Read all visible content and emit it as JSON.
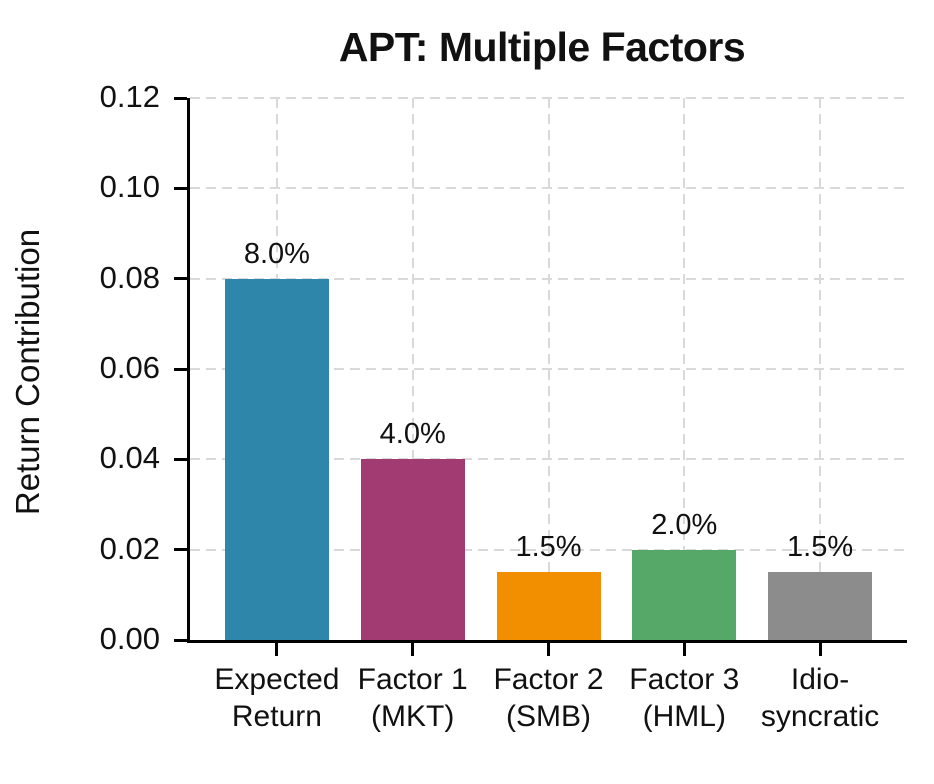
{
  "figure": {
    "background_color": "#ffffff",
    "text_color": "#111111",
    "gridline_color": "#d9d9d9",
    "gridline_style": "dashed",
    "spine_color": "#000000"
  },
  "chart_data": {
    "type": "bar",
    "title": "APT: Multiple Factors",
    "xlabel": "",
    "ylabel": "Return Contribution",
    "categories": [
      "Expected\nReturn",
      "Factor 1\n(MKT)",
      "Factor 2\n(SMB)",
      "Factor 3\n(HML)",
      "Idio-\nsyncratic"
    ],
    "values": [
      0.08,
      0.04,
      0.015,
      0.02,
      0.015
    ],
    "bar_labels": [
      "8.0%",
      "4.0%",
      "1.5%",
      "2.0%",
      "1.5%"
    ],
    "bar_colors": [
      "#2E86AB",
      "#A23B72",
      "#F18F01",
      "#55A868",
      "#8C8C8C"
    ],
    "ylim": [
      0,
      0.12
    ],
    "yticks": [
      0.0,
      0.02,
      0.04,
      0.06,
      0.08,
      0.1,
      0.12
    ],
    "ytick_labels": [
      "0.00",
      "0.02",
      "0.04",
      "0.06",
      "0.08",
      "0.10",
      "0.12"
    ],
    "grid": "both axes, dashed, behind bars",
    "legend": "none"
  }
}
